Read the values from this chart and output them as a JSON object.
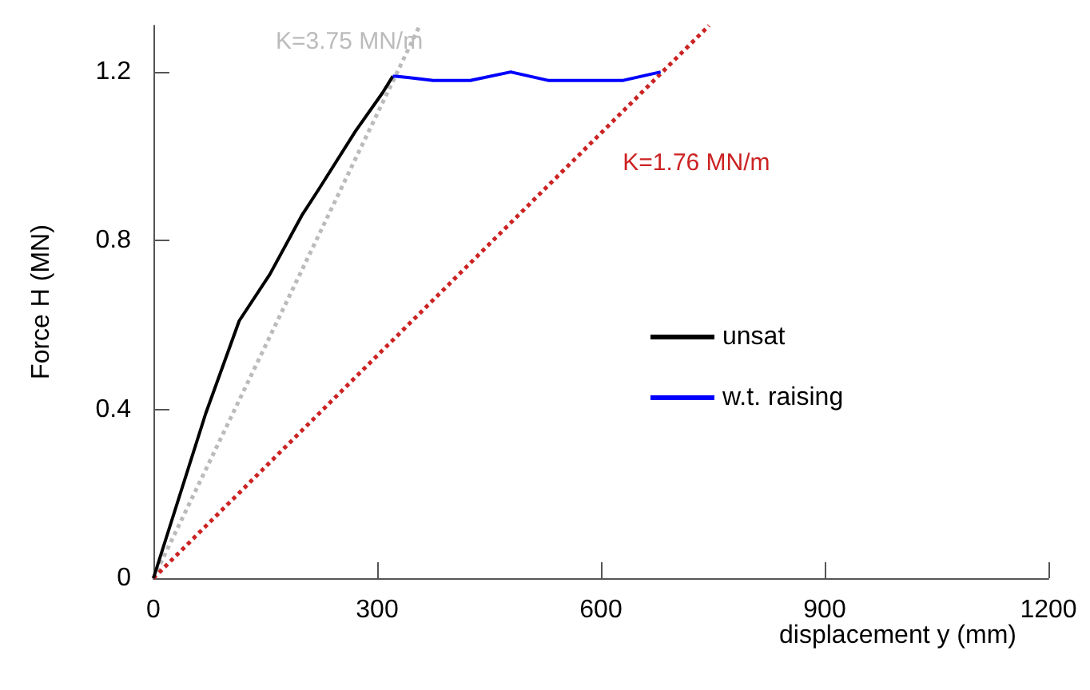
{
  "chart_data": {
    "type": "line",
    "xlabel": "displacement y (mm)",
    "ylabel": "Force H (MN)",
    "xlim": [
      0,
      1200
    ],
    "xticks": [
      0,
      300,
      600,
      900,
      1200
    ],
    "ylim": [
      0,
      1.31
    ],
    "yticks": [
      0,
      0.4,
      0.8,
      1.2
    ],
    "grid": false,
    "legend": "right",
    "marker": "none",
    "series": [
      {
        "name": "unsat",
        "color": "#000000",
        "x": [
          0,
          70,
          115,
          156,
          199,
          221,
          271,
          307,
          321
        ],
        "values": [
          0,
          0.39,
          0.61,
          0.72,
          0.86,
          0.92,
          1.06,
          1.15,
          1.19
        ]
      },
      {
        "name": "w.t. raising",
        "color": "#0000ff",
        "x": [
          321,
          325,
          375,
          425,
          479,
          529,
          630,
          680
        ],
        "values": [
          1.19,
          1.19,
          1.18,
          1.18,
          1.2,
          1.18,
          1.18,
          1.2
        ]
      },
      {
        "name": "K=3.75 MN/m",
        "color": "#bbbbbb",
        "line_style": "dotted",
        "x": [
          0,
          357
        ],
        "values": [
          0,
          1.31
        ]
      },
      {
        "name": "K=1.76 MN/m",
        "color": "#cc2222",
        "line_style": "dotted",
        "x": [
          0,
          745
        ],
        "values": [
          0,
          1.31
        ]
      }
    ]
  }
}
